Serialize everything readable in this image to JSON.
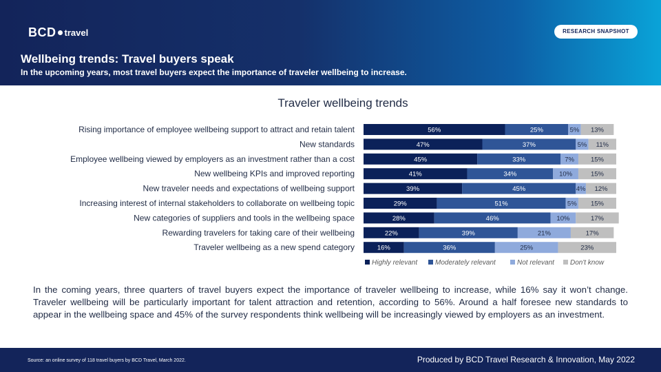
{
  "header": {
    "logo_bcd": "BCD",
    "logo_travel": "travel",
    "badge": "RESEARCH SNAPSHOT",
    "title": "Wellbeing trends: Travel buyers speak",
    "subtitle": "In the upcoming years, most travel buyers expect the importance of traveler wellbeing to increase."
  },
  "colors": {
    "highly": "#0b2159",
    "moderately": "#2f5597",
    "not": "#8faadc",
    "dont": "#bfbfbf",
    "header_dark": "#13245a"
  },
  "chart_data": {
    "type": "bar",
    "orientation": "horizontal",
    "stacked": true,
    "title": "Traveler wellbeing trends",
    "unit": "%",
    "xlim": [
      0,
      100
    ],
    "legend_position": "bottom",
    "categories": [
      "Rising importance of employee wellbeing support to attract and retain talent",
      "New standards",
      "Employee wellbeing viewed by employers as an investment rather than a cost",
      "New wellbeing KPIs and improved reporting",
      "New traveler needs and expectations of wellbeing support",
      "Increasing interest of internal stakeholders to collaborate on wellbeing topic",
      "New categories of suppliers and tools in the wellbeing space",
      "Rewarding travelers for taking care of their wellbeing",
      "Traveler wellbeing as a new spend category"
    ],
    "series": [
      {
        "name": "Highly relevant",
        "values": [
          56,
          47,
          45,
          41,
          39,
          29,
          28,
          22,
          16
        ]
      },
      {
        "name": "Moderately relevant",
        "values": [
          25,
          37,
          33,
          34,
          45,
          51,
          46,
          39,
          36
        ]
      },
      {
        "name": "Not relevant",
        "values": [
          5,
          5,
          7,
          10,
          4,
          5,
          10,
          21,
          25
        ]
      },
      {
        "name": "Don't know",
        "values": [
          13,
          11,
          15,
          15,
          12,
          15,
          17,
          17,
          23
        ]
      }
    ]
  },
  "body_text": "In the coming years, three quarters of travel buyers expect the importance of traveler wellbeing to increase, while 16% say it won’t change. Traveler wellbeing will be particularly important for talent attraction and retention, according to 56%. Around a half foresee new standards to appear in the wellbeing space and 45% of the survey respondents think wellbeing will be increasingly viewed by employers as an investment.",
  "footer": {
    "source": "Source: an online survey of 118 travel buyers by BCD Travel, March 2022.",
    "produced": "Produced by BCD Travel Research & Innovation, May 2022"
  }
}
